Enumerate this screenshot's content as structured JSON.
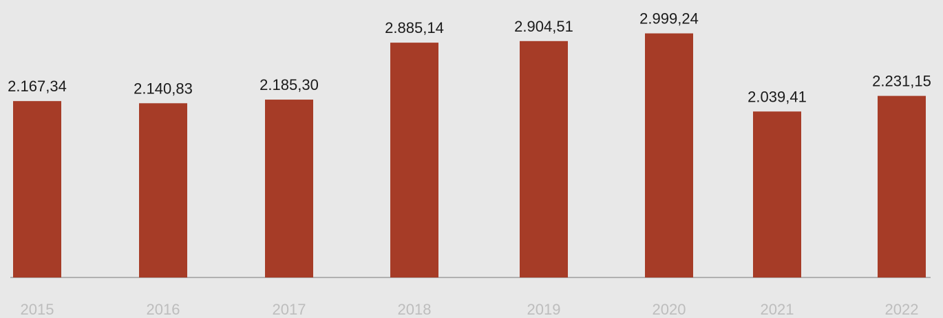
{
  "chart_data": {
    "type": "bar",
    "title": "",
    "xlabel": "",
    "ylabel": "",
    "categories": [
      "2015",
      "2016",
      "2017",
      "2018",
      "2019",
      "2020",
      "2021",
      "2022"
    ],
    "values": [
      2167.34,
      2140.83,
      2185.3,
      2885.14,
      2904.51,
      2999.24,
      2039.41,
      2231.15
    ],
    "value_labels": [
      "2.167,34",
      "2.140,83",
      "2.185,30",
      "2.885,14",
      "2.904,51",
      "2.999,24",
      "2.039,41",
      "2.231,15"
    ],
    "ylim": [
      0,
      3000
    ],
    "grid": false,
    "legend": "none",
    "colors": {
      "bar": "#a63c27",
      "background": "#e8e8e8",
      "axis": "#9e9e9e",
      "tick_label": "#bdbdbd",
      "value_label": "#1a1a1a"
    }
  }
}
